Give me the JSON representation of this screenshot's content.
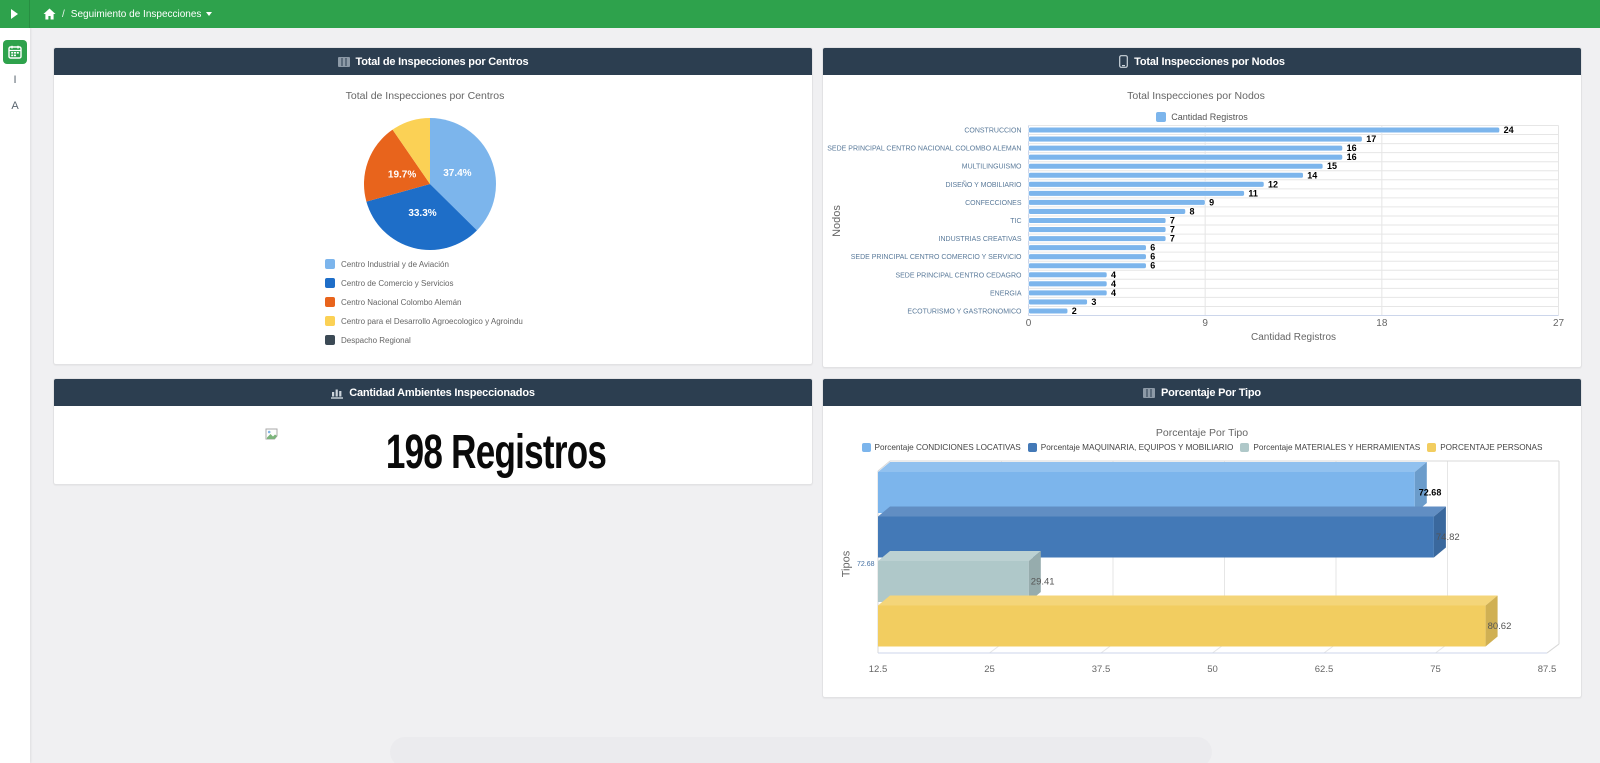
{
  "navbar": {
    "breadcrumb": "Seguimiento de Inspecciones",
    "separator": "/"
  },
  "sidebar": {
    "letters": [
      "I",
      "A"
    ]
  },
  "panels": {
    "centros": {
      "header": "Total de Inspecciones por Centros"
    },
    "nodos": {
      "header": "Total Inspecciones por Nodos"
    },
    "ambientes": {
      "header": "Cantidad Ambientes Inspeccionados",
      "value_text": "198 Registros"
    },
    "tipos": {
      "header": "Porcentaje Por Tipo"
    }
  },
  "chart_data": [
    {
      "id": "centros",
      "type": "pie",
      "title": "Total de Inspecciones por Centros",
      "labels": [
        "Centro Industrial y de Aviación",
        "Centro de Comercio y Servicios",
        "Centro Nacional Colombo Alemán",
        "Centro para el Desarrollo Agroecologico y Agroindu",
        "Despacho Regional"
      ],
      "values_pct": [
        37.4,
        33.3,
        19.7,
        9.6,
        0
      ],
      "data_labels": [
        "37.4%",
        "33.3%",
        "19.7%",
        "",
        ""
      ],
      "colors": [
        "#7CB5EC",
        "#1E6EC8",
        "#E8641C",
        "#FBD155",
        "#3C4A55"
      ],
      "legend_position": "bottom-left"
    },
    {
      "id": "nodos",
      "type": "bar",
      "orientation": "horizontal",
      "title": "Total Inspecciones por Nodos",
      "series_name": "Cantidad Registros",
      "color": "#7CB5EC",
      "categories": [
        "CONSTRUCCION",
        "",
        "SEDE PRINCIPAL CENTRO NACIONAL COLOMBO ALEMAN",
        "",
        "MULTILINGUISMO",
        "",
        "DISEÑO Y MOBILIARIO",
        "",
        "CONFECCIONES",
        "",
        "TIC",
        "",
        "INDUSTRIAS CREATIVAS",
        "",
        "SEDE PRINCIPAL CENTRO COMERCIO Y SERVICIO",
        "",
        "SEDE PRINCIPAL CENTRO CEDAGRO",
        "",
        "ENERGIA",
        "",
        "ECOTURISMO Y GASTRONOMICO"
      ],
      "values": [
        24,
        17,
        16,
        16,
        15,
        14,
        12,
        11,
        9,
        8,
        7,
        7,
        7,
        6,
        6,
        6,
        4,
        4,
        4,
        3,
        2
      ],
      "xlabel": "Cantidad Registros",
      "ylabel": "Nodos",
      "xlim": [
        0,
        27
      ],
      "x_ticks": [
        0,
        9,
        18,
        27
      ],
      "grid": true
    },
    {
      "id": "ambientes",
      "type": "table",
      "title": "Cantidad Ambientes Inspeccionados",
      "values": [
        [
          "198 Registros"
        ]
      ]
    },
    {
      "id": "tipos",
      "type": "bar",
      "orientation": "horizontal",
      "style": "3d",
      "title": "Porcentaje Por Tipo",
      "series": [
        {
          "name": "Porcentaje CONDICIONES LOCATIVAS",
          "value": 72.68,
          "color": "#7CB5EC",
          "label": "72.68",
          "emphasis": true
        },
        {
          "name": "Porcentaje MAQUINARIA, EQUIPOS Y MOBILIARIO",
          "value": 74.82,
          "color": "#4379B7",
          "label": "74.82",
          "emphasis": false
        },
        {
          "name": "Porcentaje MATERIALES Y HERRAMIENTAS",
          "value": 29.41,
          "color": "#AFC8C9",
          "label": "29.41",
          "emphasis": false
        },
        {
          "name": "PORCENTAJE PERSONAS",
          "value": 80.62,
          "color": "#F2CD60",
          "label": "80.62",
          "emphasis": false
        }
      ],
      "ylabel": "Tipos",
      "xlim": [
        12.5,
        87.5
      ],
      "x_ticks": [
        12.5,
        25,
        37.5,
        50,
        62.5,
        75,
        87.5
      ],
      "stray_label": "72.68"
    }
  ]
}
